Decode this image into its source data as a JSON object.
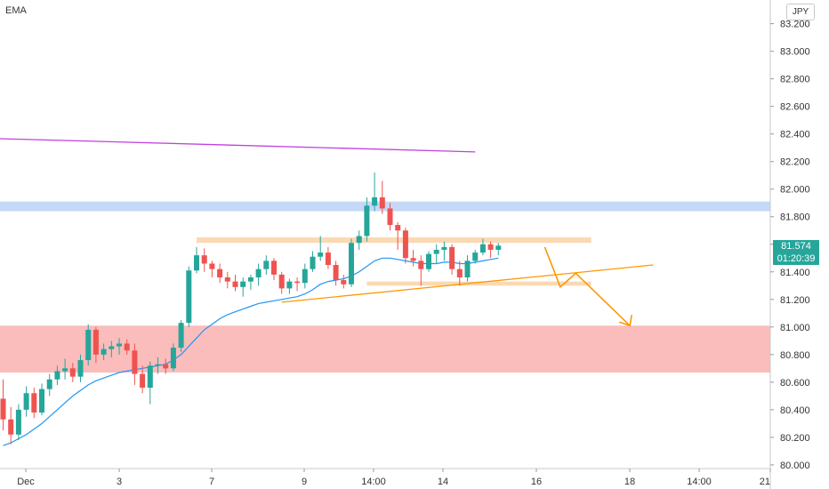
{
  "header": {
    "indicator": "EMA",
    "currency": "JPY"
  },
  "price_label": {
    "price": "81.574",
    "timer": "01:20:39",
    "color": "#26a69a"
  },
  "colors": {
    "up": "#26a69a",
    "down": "#ef5350",
    "ema": "#2196f3",
    "purple": "#c040e0",
    "orange": "#ff9800"
  },
  "chart_data": {
    "type": "candlestick",
    "ylim": [
      79.98,
      83.32
    ],
    "y_ticks": [
      "83.200",
      "83.000",
      "82.800",
      "82.600",
      "82.400",
      "82.200",
      "82.000",
      "81.800",
      "81.600",
      "81.400",
      "81.200",
      "81.000",
      "80.800",
      "80.600",
      "80.400",
      "80.200",
      "80.000"
    ],
    "x_ticks": [
      "Dec",
      "3",
      "7",
      "9",
      "14:00",
      "14",
      "16",
      "18",
      "14:00",
      "21"
    ],
    "candles": [
      [
        80.48,
        80.62,
        80.25,
        80.33
      ],
      [
        80.33,
        80.42,
        80.15,
        80.22
      ],
      [
        80.22,
        80.44,
        80.18,
        80.4
      ],
      [
        80.4,
        80.57,
        80.35,
        80.52
      ],
      [
        80.52,
        80.56,
        80.34,
        80.38
      ],
      [
        80.38,
        80.59,
        80.36,
        80.55
      ],
      [
        80.55,
        80.66,
        80.5,
        80.62
      ],
      [
        80.62,
        80.72,
        80.58,
        80.68
      ],
      [
        80.68,
        80.77,
        80.62,
        80.7
      ],
      [
        80.7,
        80.74,
        80.6,
        80.64
      ],
      [
        80.64,
        80.8,
        80.6,
        80.76
      ],
      [
        80.76,
        81.02,
        80.72,
        80.98
      ],
      [
        80.98,
        81.0,
        80.74,
        80.8
      ],
      [
        80.8,
        80.88,
        80.76,
        80.84
      ],
      [
        80.84,
        80.9,
        80.78,
        80.86
      ],
      [
        80.86,
        80.92,
        80.8,
        80.88
      ],
      [
        80.88,
        80.91,
        80.8,
        80.83
      ],
      [
        80.83,
        80.88,
        80.58,
        80.66
      ],
      [
        80.66,
        80.72,
        80.52,
        80.56
      ],
      [
        80.56,
        80.75,
        80.44,
        80.72
      ],
      [
        80.72,
        80.78,
        80.66,
        80.73
      ],
      [
        80.73,
        80.77,
        80.66,
        80.7
      ],
      [
        80.7,
        80.88,
        80.68,
        80.85
      ],
      [
        80.85,
        81.05,
        80.82,
        81.03
      ],
      [
        81.03,
        81.44,
        81.0,
        81.41
      ],
      [
        81.41,
        81.58,
        81.39,
        81.52
      ],
      [
        81.52,
        81.57,
        81.4,
        81.46
      ],
      [
        81.46,
        81.48,
        81.36,
        81.42
      ],
      [
        81.42,
        81.46,
        81.32,
        81.36
      ],
      [
        81.36,
        81.4,
        81.28,
        81.33
      ],
      [
        81.33,
        81.38,
        81.26,
        81.29
      ],
      [
        81.29,
        81.36,
        81.22,
        81.33
      ],
      [
        81.33,
        81.38,
        81.27,
        81.36
      ],
      [
        81.36,
        81.46,
        81.3,
        81.42
      ],
      [
        81.42,
        81.52,
        81.38,
        81.48
      ],
      [
        81.48,
        81.5,
        81.34,
        81.38
      ],
      [
        81.38,
        81.4,
        81.24,
        81.28
      ],
      [
        81.28,
        81.35,
        81.24,
        81.33
      ],
      [
        81.33,
        81.36,
        81.26,
        81.32
      ],
      [
        81.32,
        81.46,
        81.28,
        81.42
      ],
      [
        81.42,
        81.55,
        81.4,
        81.51
      ],
      [
        81.51,
        81.66,
        81.48,
        81.54
      ],
      [
        81.54,
        81.58,
        81.42,
        81.45
      ],
      [
        81.45,
        81.48,
        81.3,
        81.34
      ],
      [
        81.34,
        81.38,
        81.28,
        81.31
      ],
      [
        81.31,
        81.64,
        81.29,
        81.61
      ],
      [
        81.61,
        81.7,
        81.56,
        81.66
      ],
      [
        81.66,
        81.94,
        81.62,
        81.88
      ],
      [
        81.88,
        82.12,
        81.84,
        81.94
      ],
      [
        81.94,
        82.06,
        81.82,
        81.86
      ],
      [
        81.86,
        81.9,
        81.7,
        81.74
      ],
      [
        81.74,
        81.76,
        81.56,
        81.7
      ],
      [
        81.7,
        81.72,
        81.46,
        81.5
      ],
      [
        81.5,
        81.56,
        81.44,
        81.48
      ],
      [
        81.48,
        81.52,
        81.3,
        81.42
      ],
      [
        81.42,
        81.55,
        81.4,
        81.53
      ],
      [
        81.53,
        81.6,
        81.46,
        81.56
      ],
      [
        81.56,
        81.62,
        81.48,
        81.58
      ],
      [
        81.58,
        81.6,
        81.38,
        81.42
      ],
      [
        81.42,
        81.48,
        81.3,
        81.36
      ],
      [
        81.36,
        81.52,
        81.33,
        81.48
      ],
      [
        81.48,
        81.56,
        81.46,
        81.54
      ],
      [
        81.54,
        81.64,
        81.52,
        81.6
      ],
      [
        81.6,
        81.62,
        81.5,
        81.56
      ],
      [
        81.56,
        81.61,
        81.52,
        81.59
      ]
    ],
    "ema": [
      80.14,
      80.16,
      80.19,
      80.22,
      80.26,
      80.3,
      80.35,
      80.4,
      80.45,
      80.5,
      80.54,
      80.58,
      80.61,
      80.63,
      80.65,
      80.67,
      80.68,
      80.69,
      80.7,
      80.71,
      80.72,
      80.73,
      80.76,
      80.8,
      80.86,
      80.92,
      80.98,
      81.02,
      81.06,
      81.09,
      81.11,
      81.13,
      81.15,
      81.17,
      81.18,
      81.19,
      81.2,
      81.21,
      81.22,
      81.24,
      81.27,
      81.31,
      81.33,
      81.34,
      81.35,
      81.37,
      81.4,
      81.44,
      81.48,
      81.5,
      81.5,
      81.49,
      81.48,
      81.47,
      81.46,
      81.46,
      81.46,
      81.47,
      81.47,
      81.46,
      81.46,
      81.47,
      81.48,
      81.49,
      81.5
    ],
    "zones": [
      {
        "y1": 81.84,
        "y2": 81.91,
        "color": "#c5d8f8",
        "x_to": "end"
      },
      {
        "y1": 80.67,
        "y2": 81.01,
        "color": "#fbbcbc",
        "x_to": "end"
      },
      {
        "y1": 81.61,
        "y2": 81.65,
        "color": "#fbd9b4",
        "x_from": 25,
        "x_to": 76
      },
      {
        "y1": 81.3,
        "y2": 81.33,
        "color": "#fbd9b4",
        "x_from": 47,
        "x_to": 76
      }
    ],
    "trendlines": [
      {
        "from": [
          -3,
          82.37
        ],
        "to": [
          61,
          82.27
        ],
        "color": "#c040e0"
      },
      {
        "from": [
          36,
          81.18
        ],
        "to": [
          84,
          81.45
        ],
        "color": "#ff9800"
      }
    ],
    "projection": {
      "points": [
        [
          70,
          81.58
        ],
        [
          72,
          81.29
        ],
        [
          74,
          81.39
        ],
        [
          81,
          81.01
        ]
      ],
      "color": "#ff9800"
    }
  }
}
